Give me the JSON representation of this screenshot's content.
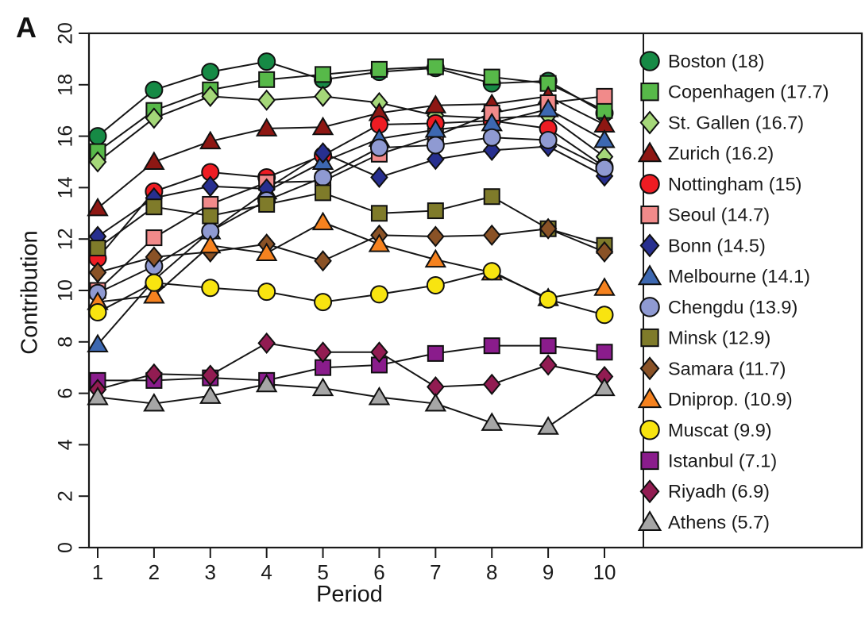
{
  "panel_label": "A",
  "frame_color": "#1a1a1a",
  "text_color": "#1a1a1a",
  "chart_data": {
    "type": "line",
    "title": "",
    "xlabel": "Period",
    "ylabel": "Contribution",
    "x": [
      1,
      2,
      3,
      4,
      5,
      6,
      7,
      8,
      9,
      10
    ],
    "xlim": [
      0.85,
      10.6
    ],
    "ylim": [
      0,
      20
    ],
    "yticks": [
      0,
      2,
      4,
      6,
      8,
      10,
      12,
      14,
      16,
      18,
      20
    ],
    "xticks": [
      "1",
      "2",
      "3",
      "4",
      "5",
      "6",
      "7",
      "8",
      "9",
      "10"
    ],
    "ytick_rotation": -90,
    "grid": false,
    "legend_position": "right-box",
    "line_color": "#161616",
    "series": [
      {
        "name": "boston",
        "label": "Boston (18)",
        "mean": 18,
        "marker": "circle",
        "color": "#168a45",
        "values": [
          16.0,
          17.8,
          18.5,
          18.9,
          18.2,
          18.5,
          18.65,
          18.05,
          18.15,
          16.9
        ]
      },
      {
        "name": "copenhagen",
        "label": "Copenhagen (17.7)",
        "mean": 17.7,
        "marker": "square",
        "color": "#57b949",
        "values": [
          15.4,
          17.0,
          17.8,
          18.2,
          18.4,
          18.6,
          18.7,
          18.3,
          18.05,
          17.0
        ]
      },
      {
        "name": "stgallen",
        "label": "St. Gallen (16.7)",
        "mean": 16.7,
        "marker": "diamond",
        "color": "#a5d779",
        "values": [
          15.0,
          16.7,
          17.55,
          17.4,
          17.55,
          17.3,
          16.8,
          16.7,
          16.8,
          15.2
        ]
      },
      {
        "name": "zurich",
        "label": "Zurich (16.2)",
        "mean": 16.2,
        "marker": "triangle",
        "color": "#8e1713",
        "values": [
          13.2,
          15.0,
          15.8,
          16.3,
          16.35,
          16.9,
          17.2,
          17.25,
          17.55,
          16.45
        ]
      },
      {
        "name": "nottingham",
        "label": "Nottingham (15)",
        "mean": 15,
        "marker": "circle",
        "color": "#ee1c23",
        "values": [
          11.25,
          13.85,
          14.6,
          14.4,
          15.25,
          16.45,
          16.5,
          16.6,
          16.3,
          14.8
        ]
      },
      {
        "name": "seoul",
        "label": "Seoul (14.7)",
        "mean": 14.7,
        "marker": "square",
        "color": "#f18a8a",
        "values": [
          10.0,
          12.05,
          13.35,
          14.2,
          14.25,
          15.3,
          16.0,
          16.9,
          17.3,
          17.55
        ]
      },
      {
        "name": "melbourne",
        "label": "Melbourne (14.1)",
        "mean": 14.1,
        "marker": "triangle",
        "color": "#3d68b1",
        "values": [
          7.9,
          10.4,
          12.3,
          13.85,
          15.0,
          15.9,
          16.25,
          16.5,
          17.05,
          15.85
        ]
      },
      {
        "name": "bonn",
        "label": "Bonn (14.5)",
        "mean": 14.5,
        "marker": "diamond",
        "color": "#272f8f",
        "values": [
          12.1,
          13.6,
          14.05,
          13.95,
          15.35,
          14.4,
          15.1,
          15.45,
          15.6,
          14.45
        ]
      },
      {
        "name": "chengdu",
        "label": "Chengdu (13.9)",
        "mean": 13.9,
        "marker": "circle",
        "color": "#8f9ad2",
        "values": [
          9.9,
          10.95,
          12.3,
          13.5,
          14.4,
          15.55,
          15.65,
          15.95,
          15.85,
          14.75
        ]
      },
      {
        "name": "minsk",
        "label": "Minsk (12.9)",
        "mean": 12.9,
        "marker": "square",
        "color": "#7f7b2a",
        "values": [
          11.65,
          13.25,
          12.9,
          13.35,
          13.8,
          13.0,
          13.1,
          13.65,
          12.4,
          11.75
        ]
      },
      {
        "name": "samara",
        "label": "Samara (11.7)",
        "mean": 11.7,
        "marker": "diamond",
        "color": "#8a5226",
        "values": [
          10.7,
          11.3,
          11.5,
          11.8,
          11.15,
          12.15,
          12.1,
          12.15,
          12.4,
          11.5
        ]
      },
      {
        "name": "dniprop",
        "label": "Dniprop. (10.9)",
        "mean": 10.9,
        "marker": "triangle",
        "color": "#f5821f",
        "values": [
          9.55,
          9.8,
          11.75,
          11.45,
          12.65,
          11.8,
          11.2,
          10.7,
          9.7,
          10.1
        ]
      },
      {
        "name": "muscat",
        "label": "Muscat (9.9)",
        "mean": 9.9,
        "marker": "circle",
        "color": "#f8e410",
        "values": [
          9.15,
          10.3,
          10.1,
          9.95,
          9.55,
          9.85,
          10.2,
          10.75,
          9.65,
          9.05
        ]
      },
      {
        "name": "istanbul",
        "label": "Istanbul (7.1)",
        "mean": 7.1,
        "marker": "square",
        "color": "#8a1c8c",
        "values": [
          6.5,
          6.5,
          6.6,
          6.5,
          7.0,
          7.1,
          7.55,
          7.85,
          7.85,
          7.6
        ]
      },
      {
        "name": "riyadh",
        "label": "Riyadh (6.9)",
        "mean": 6.9,
        "marker": "diamond",
        "color": "#921c52",
        "values": [
          6.15,
          6.75,
          6.7,
          7.95,
          7.6,
          7.6,
          6.25,
          6.35,
          7.1,
          6.65
        ]
      },
      {
        "name": "athens",
        "label": "Athens (5.7)",
        "mean": 5.7,
        "marker": "triangle",
        "color": "#a6a6a6",
        "values": [
          5.85,
          5.6,
          5.9,
          6.35,
          6.2,
          5.85,
          5.6,
          4.85,
          4.7,
          6.2
        ]
      }
    ],
    "legend_order": [
      "boston",
      "copenhagen",
      "stgallen",
      "zurich",
      "nottingham",
      "seoul",
      "bonn",
      "melbourne",
      "chengdu",
      "minsk",
      "samara",
      "dniprop",
      "muscat",
      "istanbul",
      "riyadh",
      "athens"
    ]
  }
}
